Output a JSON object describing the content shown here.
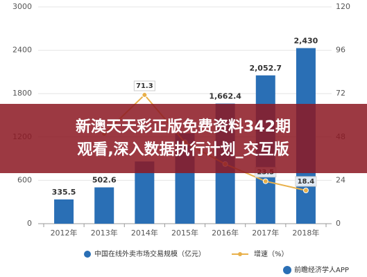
{
  "chart_data": {
    "type": "bar-line",
    "categories": [
      "2012年",
      "2013年",
      "2014年",
      "2015年",
      "2016年",
      "2017年",
      "2018年"
    ],
    "series": [
      {
        "name": "中国在线外卖市场交易规模（亿元）",
        "type": "bar",
        "color": "#2a6fb5",
        "values": [
          335.5,
          502.6,
          861,
          1250,
          1662.4,
          2052.7,
          2430
        ],
        "value_labels": [
          "335.5",
          "502.6",
          null,
          null,
          "1,662.4",
          "2,052.7",
          "2,430"
        ]
      },
      {
        "name": "增速（%）",
        "type": "line",
        "axis": "y2",
        "color": "#e8b04a",
        "values": [
          null,
          49.8,
          71.3,
          45,
          33,
          23.5,
          18.4
        ],
        "value_labels": [
          null,
          null,
          "71.3",
          null,
          null,
          "23.5",
          "18.4"
        ]
      }
    ],
    "ylim": [
      0,
      3000
    ],
    "yticks": [
      0,
      600,
      1200,
      1800,
      2400,
      3000
    ],
    "y2lim": [
      0,
      120
    ],
    "y2ticks": [
      0,
      24,
      48,
      72,
      96,
      120
    ],
    "grid": true,
    "legend": "bottom",
    "source": "前瞻经济学人APP"
  },
  "banner": {
    "lines": [
      "新澳天天彩正版免费资料342期",
      "观看,深入数据执行计划_交互版"
    ]
  }
}
